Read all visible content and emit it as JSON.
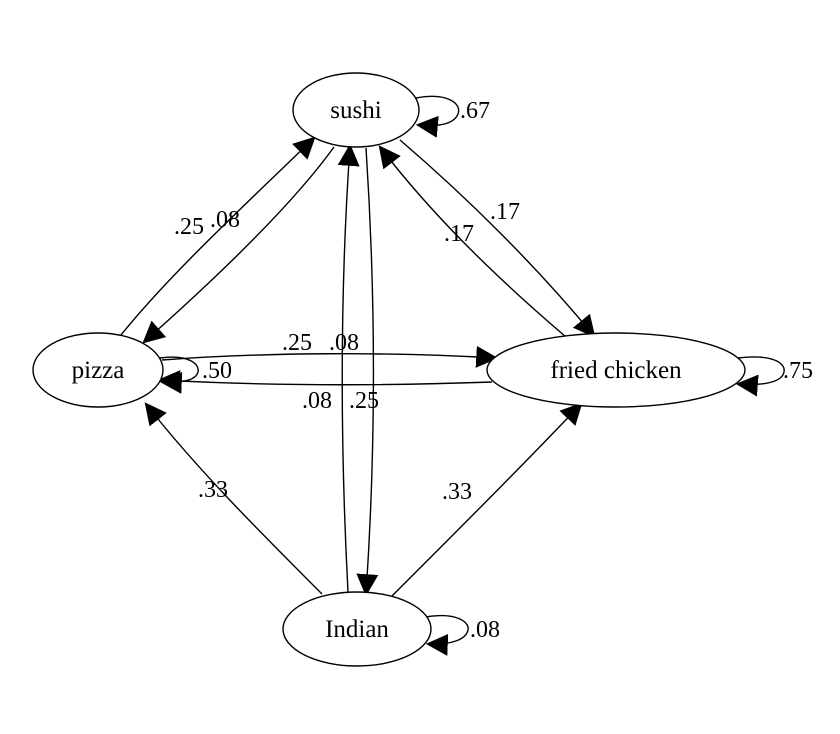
{
  "nodes": {
    "sushi": "sushi",
    "pizza": "pizza",
    "fried_chicken": "fried chicken",
    "indian": "Indian"
  },
  "edges": {
    "sushi_self": ".67",
    "pizza_self": ".50",
    "fried_chicken_self": ".75",
    "indian_self": ".08",
    "pizza_to_sushi": ".25",
    "sushi_to_pizza": ".08",
    "sushi_to_fried_chicken": ".17",
    "fried_chicken_to_sushi": ".17",
    "pizza_to_fried_chicken": ".25",
    "fried_chicken_to_pizza": ".08",
    "indian_to_sushi": ".08",
    "sushi_to_indian": ".25",
    "indian_to_pizza": ".33",
    "indian_to_fried_chicken": ".33"
  }
}
